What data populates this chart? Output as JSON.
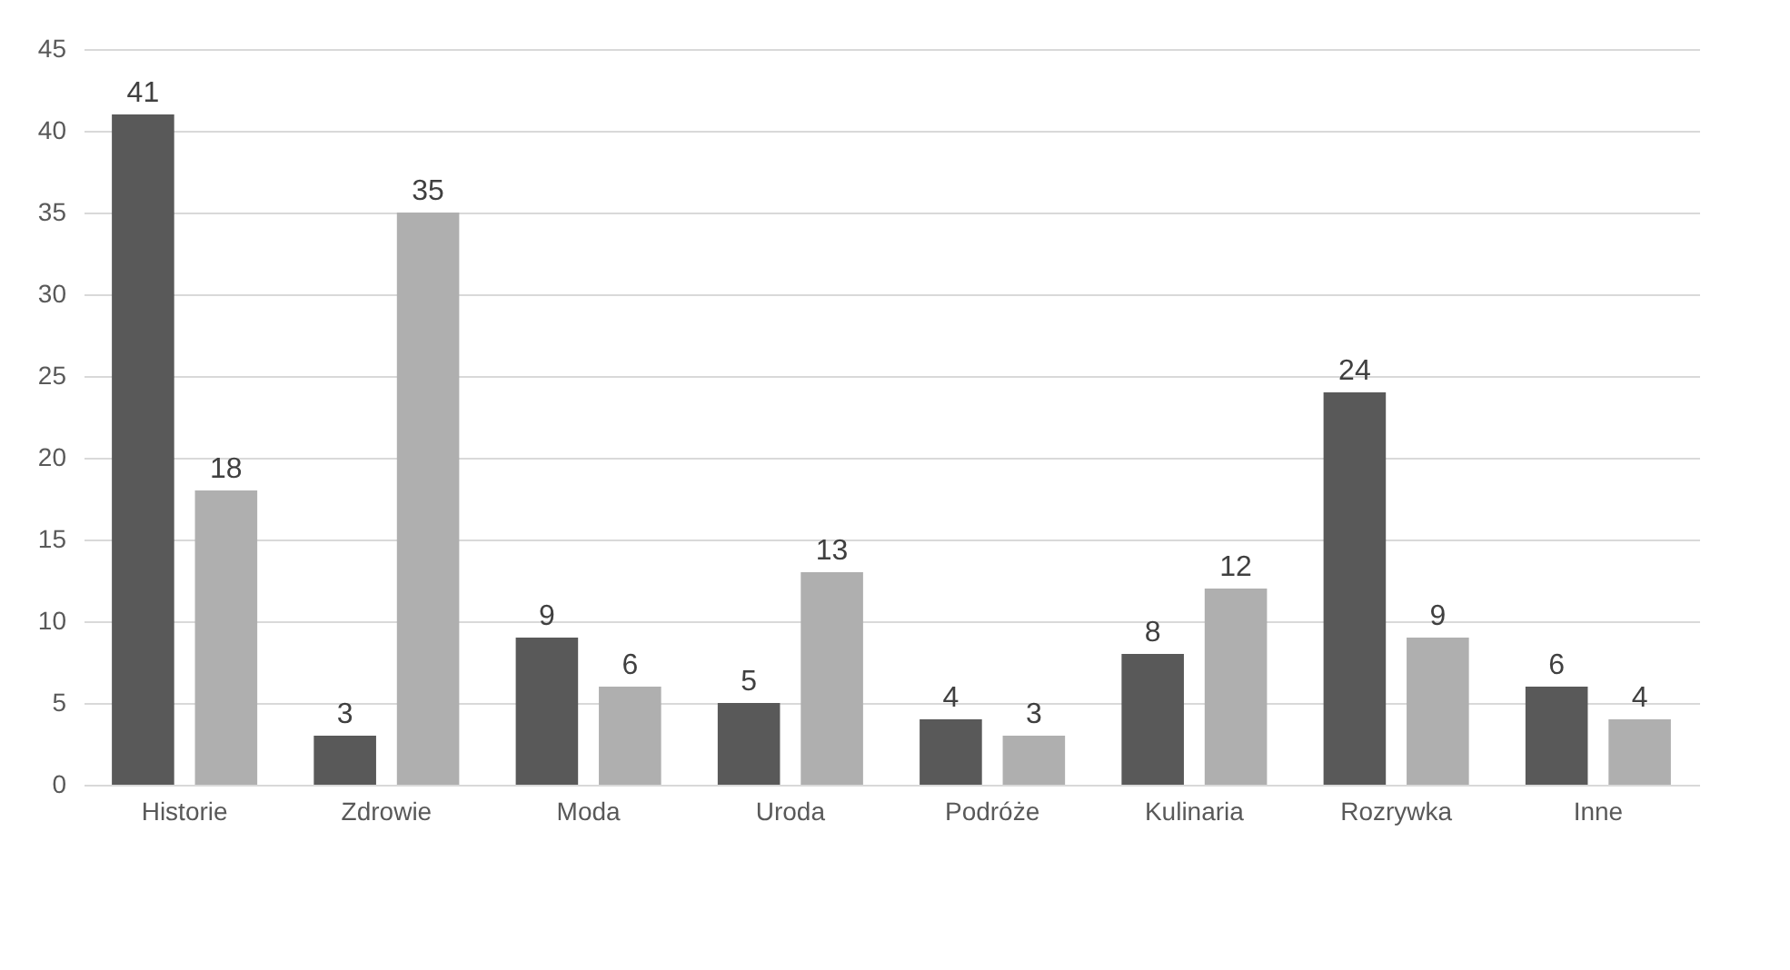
{
  "chart_data": {
    "type": "bar",
    "categories": [
      "Historie",
      "Zdrowie",
      "Moda",
      "Uroda",
      "Podróże",
      "Kulinaria",
      "Rozrywka",
      "Inne"
    ],
    "series": [
      {
        "color": "#595959",
        "values": [
          41,
          3,
          9,
          5,
          4,
          8,
          24,
          6
        ]
      },
      {
        "color": "#afafaf",
        "values": [
          18,
          35,
          6,
          13,
          3,
          12,
          9,
          4
        ]
      }
    ],
    "ylim": [
      0,
      45
    ],
    "yticks": [
      0,
      5,
      10,
      15,
      20,
      25,
      30,
      35,
      40,
      45
    ],
    "grid": "y",
    "data_labels": true
  }
}
